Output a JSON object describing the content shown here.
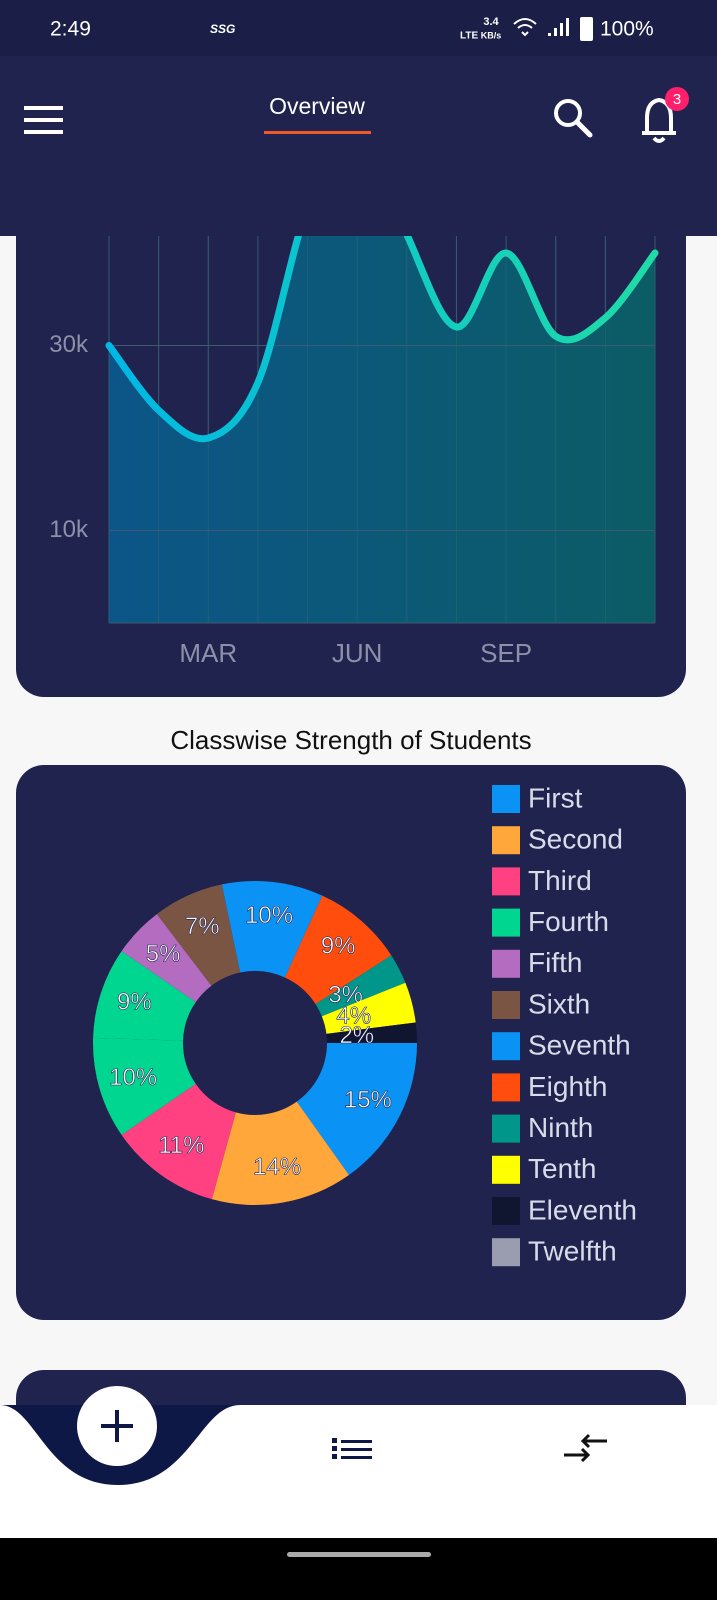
{
  "status_bar": {
    "time": "2:49",
    "carrier_text": "SSG",
    "network": "LTE",
    "speed": "3.4",
    "speed_unit": "KB/s",
    "battery": "100%"
  },
  "header": {
    "title": "Overview",
    "notification_count": 3
  },
  "chart_data": [
    {
      "type": "line",
      "categories": [
        null,
        null,
        "MAR",
        null,
        null,
        "JUN",
        null,
        null,
        "SEP",
        null,
        null,
        null
      ],
      "values": [
        30000,
        23000,
        20000,
        26000,
        45000,
        55000,
        42000,
        32000,
        40000,
        31000,
        33000,
        40000
      ],
      "ylim": [
        0,
        60000
      ],
      "yticks": [
        {
          "value": 10000,
          "label": "10k"
        },
        {
          "value": 30000,
          "label": "30k"
        }
      ],
      "grid": true,
      "color": "#19c9c8"
    },
    {
      "type": "pie",
      "title": "Classwise Strength of Students",
      "donut": true,
      "values": [
        15,
        14,
        11,
        10,
        9,
        5,
        7,
        10,
        9,
        3,
        4,
        2
      ],
      "value_labels": [
        "15%",
        "14%",
        "11%",
        "10%",
        "9%",
        "5%",
        "7%",
        "10%",
        "9%",
        "3%",
        "4%",
        "2%"
      ],
      "colors": [
        "#0a93f5",
        "#ffa73a",
        "#ff4081",
        "#00d68f",
        "#00d68f",
        "#b46cc0",
        "#7b5544",
        "#0a93f5",
        "#ff4d0d",
        "#00968a",
        "#ffff00",
        "#101530"
      ],
      "legend": {
        "names": [
          "First",
          "Second",
          "Third",
          "Fourth",
          "Fifth",
          "Sixth",
          "Seventh",
          "Eighth",
          "Ninth",
          "Tenth",
          "Eleventh",
          "Twelfth"
        ],
        "colors": [
          "#0a93f5",
          "#ffa73a",
          "#ff4081",
          "#00d68f",
          "#b46cc0",
          "#7b5544",
          "#0a93f5",
          "#ff4d0d",
          "#00968a",
          "#ffff00",
          "#101530",
          "#9a9db0"
        ]
      }
    }
  ]
}
